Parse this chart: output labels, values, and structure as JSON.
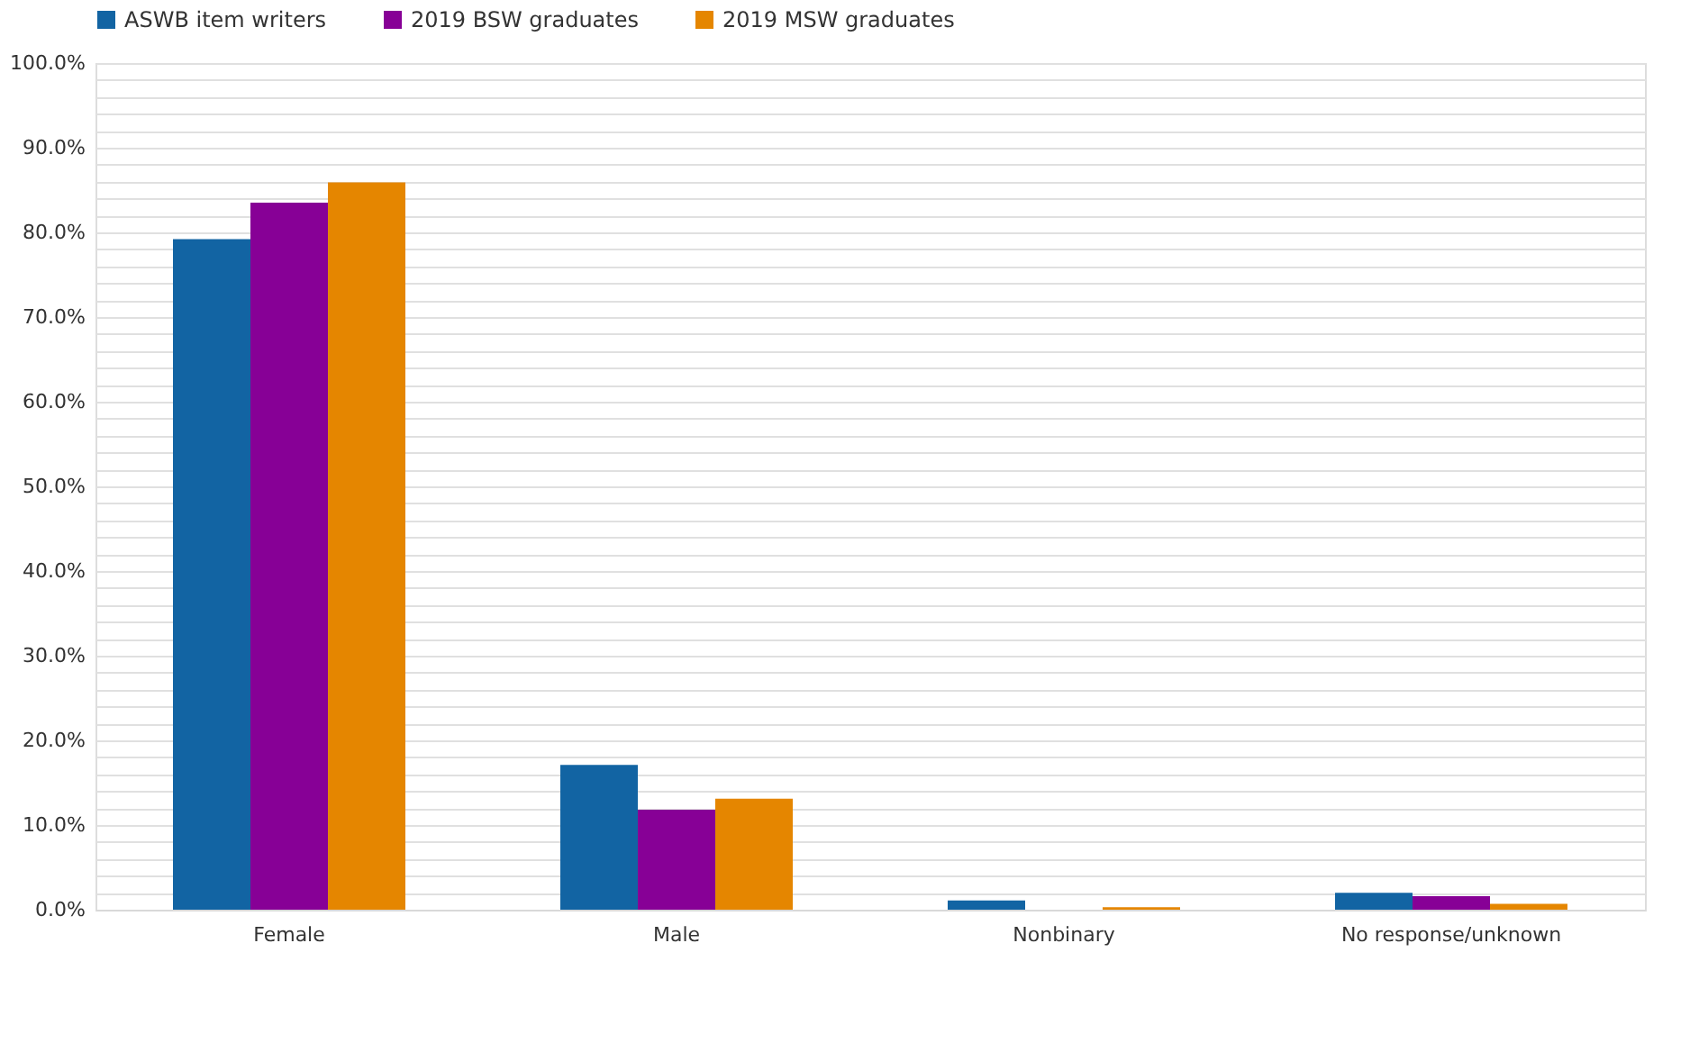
{
  "chart_data": {
    "type": "bar",
    "categories": [
      "Female",
      "Male",
      "Nonbinary",
      "No response/unknown"
    ],
    "series": [
      {
        "name": "ASWB item writers",
        "color": "#1264a3",
        "values": [
          79.2,
          17.1,
          1.1,
          2.0
        ]
      },
      {
        "name": "2019 BSW graduates",
        "color": "#870096",
        "values": [
          83.5,
          11.8,
          0,
          1.6
        ]
      },
      {
        "name": "2019 MSW graduates",
        "color": "#e58600",
        "values": [
          85.9,
          13.1,
          0.3,
          0.7
        ]
      }
    ],
    "ylim": [
      0,
      100
    ],
    "yticks": [
      {
        "value": 0,
        "label": "0.0%"
      },
      {
        "value": 2,
        "label": null
      },
      {
        "value": 4,
        "label": null
      },
      {
        "value": 6,
        "label": null
      },
      {
        "value": 8,
        "label": null
      },
      {
        "value": 10,
        "label": "10.0%"
      },
      {
        "value": 12,
        "label": null
      },
      {
        "value": 14,
        "label": null
      },
      {
        "value": 16,
        "label": null
      },
      {
        "value": 18,
        "label": null
      },
      {
        "value": 20,
        "label": "20.0%"
      },
      {
        "value": 22,
        "label": null
      },
      {
        "value": 24,
        "label": null
      },
      {
        "value": 26,
        "label": null
      },
      {
        "value": 28,
        "label": null
      },
      {
        "value": 30,
        "label": "30.0%"
      },
      {
        "value": 32,
        "label": null
      },
      {
        "value": 34,
        "label": null
      },
      {
        "value": 36,
        "label": null
      },
      {
        "value": 38,
        "label": null
      },
      {
        "value": 40,
        "label": "40.0%"
      },
      {
        "value": 42,
        "label": null
      },
      {
        "value": 44,
        "label": null
      },
      {
        "value": 46,
        "label": null
      },
      {
        "value": 48,
        "label": null
      },
      {
        "value": 50,
        "label": "50.0%"
      },
      {
        "value": 52,
        "label": null
      },
      {
        "value": 54,
        "label": null
      },
      {
        "value": 56,
        "label": null
      },
      {
        "value": 58,
        "label": null
      },
      {
        "value": 60,
        "label": "60.0%"
      },
      {
        "value": 62,
        "label": null
      },
      {
        "value": 64,
        "label": null
      },
      {
        "value": 66,
        "label": null
      },
      {
        "value": 68,
        "label": null
      },
      {
        "value": 70,
        "label": "70.0%"
      },
      {
        "value": 72,
        "label": null
      },
      {
        "value": 74,
        "label": null
      },
      {
        "value": 76,
        "label": null
      },
      {
        "value": 78,
        "label": null
      },
      {
        "value": 80,
        "label": "80.0%"
      },
      {
        "value": 82,
        "label": null
      },
      {
        "value": 84,
        "label": null
      },
      {
        "value": 86,
        "label": null
      },
      {
        "value": 88,
        "label": null
      },
      {
        "value": 90,
        "label": "90.0%"
      },
      {
        "value": 92,
        "label": null
      },
      {
        "value": 94,
        "label": null
      },
      {
        "value": 96,
        "label": null
      },
      {
        "value": 98,
        "label": null
      },
      {
        "value": 100,
        "label": "100.0%"
      }
    ],
    "grid": "y",
    "legend": "top"
  }
}
